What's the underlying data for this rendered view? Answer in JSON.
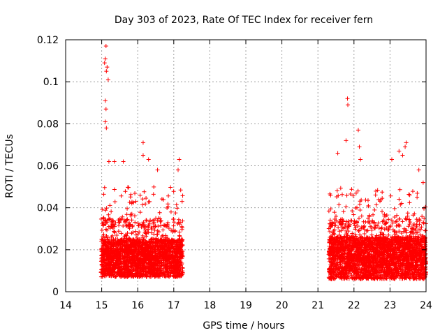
{
  "chart_data": {
    "type": "scatter",
    "title": "Day 303 of 2023, Rate Of TEC Index for receiver fern",
    "xlabel": "GPS time / hours",
    "ylabel": "ROTI / TECUs",
    "xlim": [
      14,
      24
    ],
    "ylim": [
      0,
      0.12
    ],
    "xticks": [
      "14",
      "15",
      "16",
      "17",
      "18",
      "19",
      "20",
      "21",
      "22",
      "23",
      "24"
    ],
    "yticks": [
      "0",
      "0.02",
      "0.04",
      "0.06",
      "0.08",
      "0.1",
      "0.12"
    ],
    "grid": true,
    "marker": "plus",
    "color": "#ff0000",
    "outliers": [
      [
        15.12,
        0.117
      ],
      [
        15.1,
        0.111
      ],
      [
        15.08,
        0.109
      ],
      [
        15.15,
        0.107
      ],
      [
        15.13,
        0.105
      ],
      [
        15.18,
        0.101
      ],
      [
        15.1,
        0.091
      ],
      [
        15.12,
        0.087
      ],
      [
        15.1,
        0.081
      ],
      [
        15.13,
        0.078
      ],
      [
        15.2,
        0.062
      ],
      [
        15.35,
        0.062
      ],
      [
        15.6,
        0.062
      ],
      [
        16.15,
        0.071
      ],
      [
        16.15,
        0.065
      ],
      [
        16.3,
        0.063
      ],
      [
        16.55,
        0.058
      ],
      [
        17.15,
        0.063
      ],
      [
        17.12,
        0.058
      ],
      [
        21.82,
        0.092
      ],
      [
        21.83,
        0.089
      ],
      [
        22.12,
        0.077
      ],
      [
        21.78,
        0.072
      ],
      [
        22.15,
        0.069
      ],
      [
        21.55,
        0.066
      ],
      [
        22.18,
        0.063
      ],
      [
        23.45,
        0.071
      ],
      [
        23.42,
        0.069
      ],
      [
        23.25,
        0.067
      ],
      [
        23.35,
        0.065
      ],
      [
        23.05,
        0.063
      ],
      [
        23.8,
        0.058
      ],
      [
        23.92,
        0.052
      ]
    ],
    "dense_segments": [
      {
        "x_start": 14.98,
        "x_end": 17.25,
        "y_min": 0.005,
        "y_max": 0.05,
        "typical": 0.015
      },
      {
        "x_start": 21.3,
        "x_end": 24.0,
        "y_min": 0.004,
        "y_max": 0.05,
        "typical": 0.016
      }
    ]
  }
}
